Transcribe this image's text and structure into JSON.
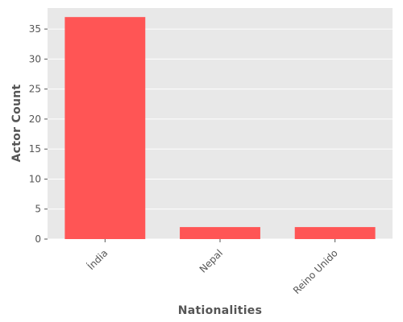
{
  "chart_data": {
    "type": "bar",
    "categories": [
      "Índia",
      "Nepal",
      "Reino Unido"
    ],
    "values": [
      37,
      2,
      2
    ],
    "title": "",
    "xlabel": "Nationalities",
    "ylabel": "Actor Count",
    "ylim": [
      0,
      38.5
    ],
    "yticks": [
      0,
      5,
      10,
      15,
      20,
      25,
      30,
      35
    ],
    "grid": true,
    "legend": "none",
    "colors": {
      "bar": "#ff5555",
      "plot_background": "#e8e8e8",
      "grid": "#ffffff",
      "text": "#555555"
    }
  }
}
